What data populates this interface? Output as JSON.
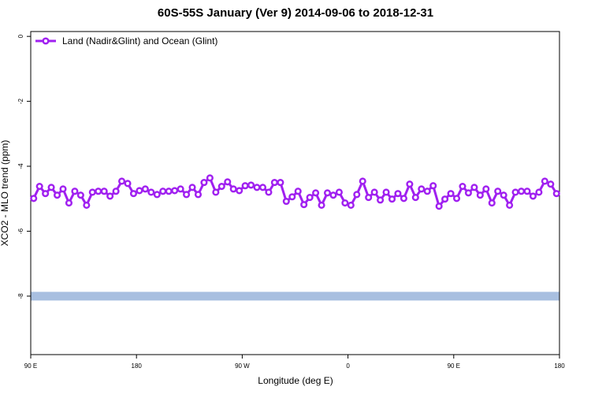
{
  "chart_data": {
    "type": "line",
    "title": "60S-55S January (Ver 9)   2014-09-06 to 2018-12-31",
    "x_label": "Longitude (deg E)",
    "y_label": "XCO2 - MLO trend (ppm)",
    "legend": "top-left",
    "x": [
      92.5,
      97.5,
      102.5,
      107.5,
      112.5,
      117.5,
      122.5,
      127.5,
      132.5,
      137.5,
      142.5,
      147.5,
      152.5,
      157.5,
      162.5,
      167.5,
      172.5,
      177.5,
      182.5,
      187.5,
      192.5,
      197.5,
      202.5,
      207.5,
      212.5,
      217.5,
      222.5,
      227.5,
      232.5,
      237.5,
      242.5,
      247.5,
      252.5,
      257.5,
      262.5,
      267.5,
      272.5,
      277.5,
      282.5,
      287.5,
      292.5,
      297.5,
      302.5,
      307.5,
      312.5,
      317.5,
      322.5,
      327.5,
      332.5,
      337.5,
      342.5,
      347.5,
      352.5,
      357.5,
      362.5,
      367.5,
      372.5,
      377.5,
      382.5,
      387.5,
      392.5,
      397.5,
      402.5,
      407.5,
      412.5,
      417.5,
      422.5,
      427.5,
      432.5,
      437.5,
      442.5,
      447.5,
      452.5,
      457.5,
      462.5,
      467.5,
      472.5,
      477.5,
      482.5,
      487.5,
      492.5,
      497.5,
      502.5,
      507.5,
      512.5,
      517.5,
      522.5,
      527.5,
      532.5,
      537.5
    ],
    "series": [
      {
        "name": "Land (Nadir&Glint) and Ocean (Glint)",
        "color": "#a020f0",
        "values": [
          -4.99,
          -4.62,
          -4.84,
          -4.65,
          -4.89,
          -4.7,
          -5.13,
          -4.77,
          -4.89,
          -5.2,
          -4.8,
          -4.77,
          -4.77,
          -4.92,
          -4.77,
          -4.46,
          -4.53,
          -4.84,
          -4.75,
          -4.7,
          -4.8,
          -4.87,
          -4.77,
          -4.77,
          -4.75,
          -4.7,
          -4.87,
          -4.65,
          -4.87,
          -4.5,
          -4.36,
          -4.8,
          -4.62,
          -4.48,
          -4.7,
          -4.75,
          -4.6,
          -4.58,
          -4.65,
          -4.65,
          -4.8,
          -4.5,
          -4.5,
          -5.08,
          -4.94,
          -4.77,
          -5.18,
          -4.96,
          -4.82,
          -5.2,
          -4.82,
          -4.89,
          -4.8,
          -5.13,
          -5.2,
          -4.87,
          -4.46,
          -4.96,
          -4.8,
          -5.04,
          -4.8,
          -5.01,
          -4.84,
          -4.99,
          -4.55,
          -4.96,
          -4.7,
          -4.77,
          -4.6,
          -5.23,
          -5.01,
          -4.84,
          -4.99,
          -4.62,
          -4.82,
          -4.65,
          -4.89,
          -4.7,
          -5.13,
          -4.77,
          -4.89,
          -5.2,
          -4.8,
          -4.77,
          -4.77,
          -4.92,
          -4.8,
          -4.46,
          -4.55,
          -4.84
        ]
      }
    ],
    "reference_line": {
      "value": -8,
      "color": "#a8bfe0"
    },
    "xlim": [
      90,
      540
    ],
    "xticks": [
      {
        "value": 90,
        "label": "90 E"
      },
      {
        "value": 180,
        "label": "180"
      },
      {
        "value": 270,
        "label": "90 W"
      },
      {
        "value": 360,
        "label": "0"
      },
      {
        "value": 450,
        "label": "90 E"
      },
      {
        "value": 540,
        "label": "180"
      }
    ],
    "ylim": [
      -9.8,
      0.15
    ],
    "yticks": [
      0,
      -2,
      -4,
      -6,
      -8
    ]
  }
}
